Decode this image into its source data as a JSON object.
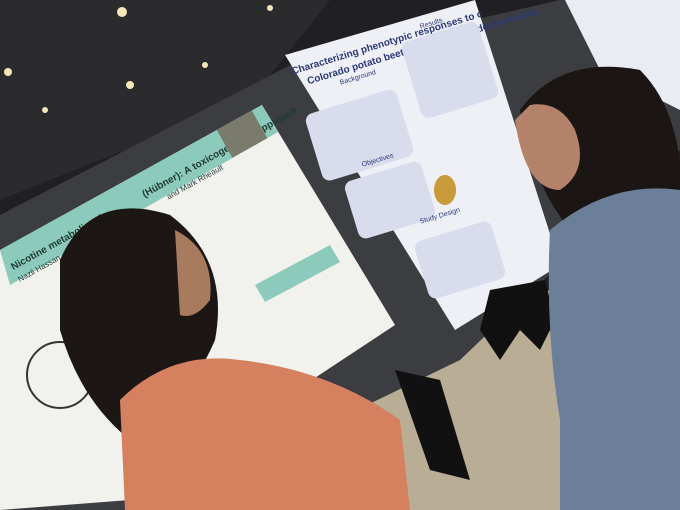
{
  "posters": [
    {
      "title_start": "Nicotine metabolism in",
      "title_end": "(Hübner): A toxicogenomic approach",
      "authors_start": "Nazli Hassan",
      "authors_end": "and Mark Rheault"
    },
    {
      "title": "Characterizing phenotypic responses to c",
      "subtitle": "Colorado potato beetle, Leptinotarsa decemlineata",
      "sections": [
        "Background",
        "Results",
        "Objectives",
        "Study Design"
      ]
    }
  ]
}
